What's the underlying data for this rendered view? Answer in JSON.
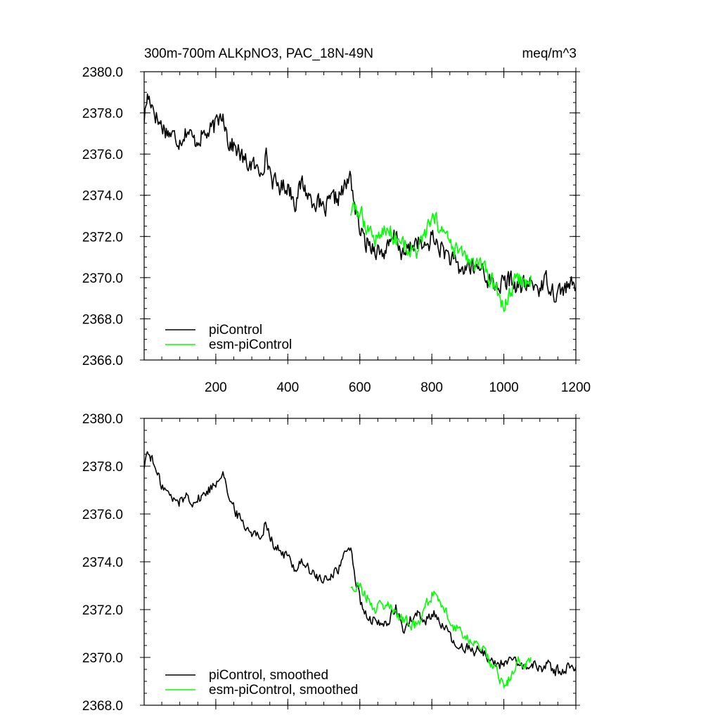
{
  "header": {
    "title": "300m-700m ALKpNO3, PAC_18N-49N",
    "units": "meq/m^3"
  },
  "chart_data": [
    {
      "type": "line",
      "xlim": [
        1,
        1200
      ],
      "ylim": [
        2366,
        2380
      ],
      "x_ticks": [
        200,
        400,
        600,
        800,
        1000,
        1200
      ],
      "x_tick_labels": [
        "200",
        "400",
        "600",
        "800",
        "1000",
        "1200"
      ],
      "y_ticks": [
        2366,
        2368,
        2370,
        2372,
        2374,
        2376,
        2378,
        2380
      ],
      "y_tick_labels": [
        "2366.0",
        "2368.0",
        "2370.0",
        "2372.0",
        "2374.0",
        "2376.0",
        "2378.0",
        "2380.0"
      ],
      "legend_position": "bottom-left",
      "series": [
        {
          "name": "piControl",
          "color": "#000000",
          "knots": [
            [
              1,
              2377.7
            ],
            [
              10,
              2378.8
            ],
            [
              20,
              2378.6
            ],
            [
              40,
              2377.6
            ],
            [
              60,
              2377.2
            ],
            [
              80,
              2376.9
            ],
            [
              100,
              2376.7
            ],
            [
              120,
              2377.2
            ],
            [
              140,
              2376.6
            ],
            [
              160,
              2376.9
            ],
            [
              180,
              2377.0
            ],
            [
              200,
              2377.4
            ],
            [
              220,
              2378.1
            ],
            [
              235,
              2376.6
            ],
            [
              260,
              2376.2
            ],
            [
              280,
              2375.6
            ],
            [
              300,
              2375.5
            ],
            [
              320,
              2375.1
            ],
            [
              340,
              2375.9
            ],
            [
              360,
              2374.6
            ],
            [
              380,
              2374.4
            ],
            [
              400,
              2374.5
            ],
            [
              420,
              2373.7
            ],
            [
              440,
              2374.6
            ],
            [
              460,
              2373.9
            ],
            [
              480,
              2373.7
            ],
            [
              500,
              2373.2
            ],
            [
              520,
              2373.7
            ],
            [
              540,
              2373.9
            ],
            [
              560,
              2374.4
            ],
            [
              575,
              2374.9
            ],
            [
              590,
              2373.0
            ],
            [
              610,
              2371.8
            ],
            [
              640,
              2371.5
            ],
            [
              660,
              2371.2
            ],
            [
              680,
              2371.4
            ],
            [
              700,
              2372.1
            ],
            [
              720,
              2371.0
            ],
            [
              740,
              2371.5
            ],
            [
              760,
              2371.8
            ],
            [
              780,
              2371.3
            ],
            [
              800,
              2372.0
            ],
            [
              820,
              2371.5
            ],
            [
              840,
              2371.2
            ],
            [
              860,
              2370.7
            ],
            [
              880,
              2370.3
            ],
            [
              900,
              2370.6
            ],
            [
              920,
              2370.4
            ],
            [
              940,
              2370.5
            ],
            [
              960,
              2369.8
            ],
            [
              980,
              2369.6
            ],
            [
              1000,
              2369.7
            ],
            [
              1020,
              2369.9
            ],
            [
              1040,
              2369.5
            ],
            [
              1060,
              2369.6
            ],
            [
              1080,
              2369.7
            ],
            [
              1100,
              2369.5
            ],
            [
              1120,
              2369.9
            ],
            [
              1140,
              2369.3
            ],
            [
              1160,
              2369.4
            ],
            [
              1180,
              2369.6
            ],
            [
              1200,
              2369.5
            ]
          ]
        },
        {
          "name": "esm-piControl",
          "color": "#00ff00",
          "knots": [
            [
              575,
              2373.2
            ],
            [
              595,
              2373.3
            ],
            [
              620,
              2372.5
            ],
            [
              640,
              2371.9
            ],
            [
              660,
              2372.2
            ],
            [
              680,
              2372.3
            ],
            [
              700,
              2372.0
            ],
            [
              720,
              2371.6
            ],
            [
              740,
              2371.4
            ],
            [
              760,
              2371.2
            ],
            [
              780,
              2372.1
            ],
            [
              800,
              2372.7
            ],
            [
              820,
              2372.6
            ],
            [
              840,
              2371.9
            ],
            [
              860,
              2371.3
            ],
            [
              880,
              2371.2
            ],
            [
              900,
              2370.9
            ],
            [
              920,
              2370.5
            ],
            [
              940,
              2370.5
            ],
            [
              960,
              2369.9
            ],
            [
              980,
              2369.4
            ],
            [
              990,
              2368.9
            ],
            [
              1000,
              2368.7
            ],
            [
              1010,
              2368.8
            ],
            [
              1020,
              2369.3
            ],
            [
              1040,
              2370.0
            ],
            [
              1060,
              2369.6
            ],
            [
              1075,
              2370.1
            ]
          ]
        }
      ]
    },
    {
      "type": "line",
      "xlim": [
        1,
        1200
      ],
      "ylim": [
        2368,
        2380
      ],
      "x_ticks": [
        200,
        400,
        600,
        800,
        1000,
        1200
      ],
      "y_ticks": [
        2368,
        2370,
        2372,
        2374,
        2376,
        2378,
        2380
      ],
      "y_tick_labels": [
        "2368.0",
        "2370.0",
        "2372.0",
        "2374.0",
        "2376.0",
        "2378.0",
        "2380.0"
      ],
      "legend_position": "bottom-left",
      "series": [
        {
          "name": "piControl, smoothed",
          "color": "#000000",
          "knots": [
            [
              1,
              2378.0
            ],
            [
              10,
              2378.6
            ],
            [
              20,
              2378.4
            ],
            [
              40,
              2377.5
            ],
            [
              60,
              2377.0
            ],
            [
              80,
              2376.6
            ],
            [
              100,
              2376.5
            ],
            [
              120,
              2376.8
            ],
            [
              140,
              2376.5
            ],
            [
              160,
              2376.7
            ],
            [
              180,
              2377.0
            ],
            [
              200,
              2377.3
            ],
            [
              220,
              2377.9
            ],
            [
              240,
              2376.4
            ],
            [
              260,
              2376.0
            ],
            [
              280,
              2375.5
            ],
            [
              300,
              2375.3
            ],
            [
              320,
              2375.0
            ],
            [
              340,
              2375.7
            ],
            [
              360,
              2374.7
            ],
            [
              380,
              2374.4
            ],
            [
              400,
              2374.2
            ],
            [
              420,
              2373.7
            ],
            [
              440,
              2374.1
            ],
            [
              460,
              2373.6
            ],
            [
              480,
              2373.4
            ],
            [
              500,
              2373.1
            ],
            [
              520,
              2373.5
            ],
            [
              540,
              2373.7
            ],
            [
              560,
              2374.3
            ],
            [
              575,
              2374.7
            ],
            [
              590,
              2373.1
            ],
            [
              610,
              2371.8
            ],
            [
              640,
              2371.5
            ],
            [
              660,
              2371.3
            ],
            [
              680,
              2371.6
            ],
            [
              700,
              2372.0
            ],
            [
              720,
              2371.2
            ],
            [
              740,
              2371.5
            ],
            [
              760,
              2371.8
            ],
            [
              780,
              2371.4
            ],
            [
              800,
              2371.9
            ],
            [
              820,
              2371.6
            ],
            [
              840,
              2371.1
            ],
            [
              860,
              2370.6
            ],
            [
              880,
              2370.3
            ],
            [
              900,
              2370.5
            ],
            [
              920,
              2370.3
            ],
            [
              940,
              2370.3
            ],
            [
              960,
              2369.9
            ],
            [
              980,
              2369.7
            ],
            [
              1000,
              2369.8
            ],
            [
              1020,
              2369.9
            ],
            [
              1040,
              2369.6
            ],
            [
              1060,
              2369.6
            ],
            [
              1080,
              2369.7
            ],
            [
              1100,
              2369.5
            ],
            [
              1120,
              2369.8
            ],
            [
              1140,
              2369.4
            ],
            [
              1160,
              2369.5
            ],
            [
              1180,
              2369.6
            ],
            [
              1200,
              2369.6
            ]
          ]
        },
        {
          "name": "esm-piControl, smoothed",
          "color": "#00ff00",
          "knots": [
            [
              575,
              2373.0
            ],
            [
              595,
              2373.1
            ],
            [
              620,
              2372.5
            ],
            [
              640,
              2372.0
            ],
            [
              660,
              2372.2
            ],
            [
              680,
              2372.2
            ],
            [
              700,
              2371.9
            ],
            [
              720,
              2371.6
            ],
            [
              740,
              2371.4
            ],
            [
              760,
              2371.3
            ],
            [
              780,
              2372.1
            ],
            [
              800,
              2372.6
            ],
            [
              820,
              2372.5
            ],
            [
              840,
              2371.8
            ],
            [
              860,
              2371.3
            ],
            [
              880,
              2371.1
            ],
            [
              900,
              2370.8
            ],
            [
              920,
              2370.5
            ],
            [
              940,
              2370.4
            ],
            [
              960,
              2369.9
            ],
            [
              980,
              2369.4
            ],
            [
              990,
              2369.1
            ],
            [
              1000,
              2368.8
            ],
            [
              1010,
              2368.9
            ],
            [
              1020,
              2369.3
            ],
            [
              1040,
              2369.9
            ],
            [
              1060,
              2369.6
            ],
            [
              1075,
              2370.0
            ]
          ]
        }
      ]
    }
  ]
}
